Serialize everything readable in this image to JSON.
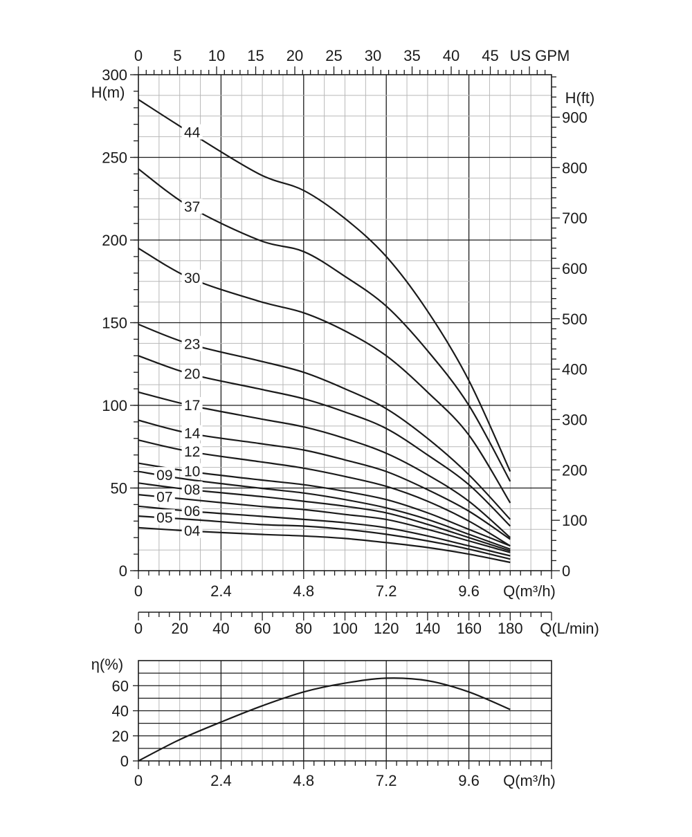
{
  "chart_data": [
    {
      "type": "line",
      "name": "head",
      "axes": {
        "x_bottom": {
          "label": "Q(m³/h)",
          "min": 0,
          "max": 12,
          "ticks": [
            0,
            2.4,
            4.8,
            7.2,
            9.6
          ],
          "tick_labels": [
            "0",
            "2.4",
            "4.8",
            "7.2",
            "9.6"
          ]
        },
        "x_top": {
          "label": "US GPM",
          "min": 0,
          "max": 52.83,
          "ticks": [
            0,
            5,
            10,
            15,
            20,
            25,
            30,
            35,
            40,
            45
          ],
          "tick_labels": [
            "0",
            "5",
            "10",
            "15",
            "20",
            "25",
            "30",
            "35",
            "40",
            "45"
          ]
        },
        "y_left": {
          "label": "H(m)",
          "min": 0,
          "max": 300,
          "ticks": [
            0,
            50,
            100,
            150,
            200,
            250,
            300
          ],
          "tick_labels": [
            "0",
            "50",
            "100",
            "150",
            "200",
            "250",
            "300"
          ]
        },
        "y_right": {
          "label": "H(ft)",
          "min": 0,
          "max": 984.3,
          "ticks": [
            0,
            100,
            200,
            300,
            400,
            500,
            600,
            700,
            800,
            900
          ],
          "tick_labels": [
            "0",
            "100",
            "200",
            "300",
            "400",
            "500",
            "600",
            "700",
            "800",
            "900"
          ]
        }
      },
      "grid": "on",
      "series": [
        {
          "name": "44",
          "x": [
            0,
            1.5,
            3.5,
            4.8,
            6.0,
            7.2,
            8.4,
            9.6,
            10.8
          ],
          "y": [
            285,
            265,
            240,
            230,
            213,
            190,
            157,
            115,
            60
          ]
        },
        {
          "name": "37",
          "x": [
            0,
            1.5,
            3.5,
            4.8,
            6.0,
            7.2,
            8.4,
            9.6,
            10.8
          ],
          "y": [
            243,
            220,
            200,
            193,
            178,
            160,
            133,
            100,
            54
          ]
        },
        {
          "name": "30",
          "x": [
            0,
            1.5,
            3.5,
            4.8,
            6.0,
            7.2,
            8.4,
            9.6,
            10.8
          ],
          "y": [
            195,
            177,
            163,
            156,
            145,
            130,
            108,
            82,
            41
          ]
        },
        {
          "name": "23",
          "x": [
            0,
            1.5,
            3.5,
            4.8,
            6.0,
            7.2,
            8.4,
            9.6,
            10.8
          ],
          "y": [
            149,
            137,
            127,
            120,
            110,
            98,
            80,
            58,
            31
          ]
        },
        {
          "name": "20",
          "x": [
            0,
            1.5,
            3.5,
            4.8,
            6.0,
            7.2,
            8.4,
            9.6,
            10.8
          ],
          "y": [
            130,
            119,
            110,
            104,
            96,
            86,
            70,
            52,
            27
          ]
        },
        {
          "name": "17",
          "x": [
            0,
            1.5,
            3.5,
            4.8,
            6.0,
            7.2,
            8.4,
            9.6,
            10.8
          ],
          "y": [
            108,
            100,
            92,
            87,
            80,
            71,
            58,
            42,
            20
          ]
        },
        {
          "name": "14",
          "x": [
            0,
            1.5,
            3.5,
            4.8,
            6.0,
            7.2,
            8.4,
            9.6,
            10.8
          ],
          "y": [
            91,
            83,
            77,
            73,
            67,
            60,
            49,
            36,
            19
          ]
        },
        {
          "name": "12",
          "x": [
            0,
            1.5,
            3.5,
            4.8,
            6.0,
            7.2,
            8.4,
            9.6,
            10.8
          ],
          "y": [
            79,
            72,
            66,
            62,
            57,
            51,
            42,
            30,
            15
          ]
        },
        {
          "name": "10",
          "x": [
            0,
            1.5,
            3.5,
            4.8,
            6.0,
            7.2,
            8.4,
            9.6,
            10.8
          ],
          "y": [
            65,
            60,
            55,
            52,
            48,
            43,
            35,
            25,
            15
          ]
        },
        {
          "name": "09",
          "x": [
            0,
            1.5,
            3.5,
            4.8,
            6.0,
            7.2,
            8.4,
            9.6,
            10.8
          ],
          "y": [
            60,
            55,
            50,
            47,
            43,
            38,
            31,
            22,
            13
          ]
        },
        {
          "name": "08",
          "x": [
            0,
            1.5,
            3.5,
            4.8,
            6.0,
            7.2,
            8.4,
            9.6,
            10.8
          ],
          "y": [
            53,
            49,
            45,
            42,
            39,
            35,
            28,
            20,
            12
          ]
        },
        {
          "name": "07",
          "x": [
            0,
            1.5,
            3.5,
            4.8,
            6.0,
            7.2,
            8.4,
            9.6,
            10.8
          ],
          "y": [
            46,
            43,
            39,
            37,
            34,
            31,
            25,
            18,
            11
          ]
        },
        {
          "name": "06",
          "x": [
            0,
            1.5,
            3.5,
            4.8,
            6.0,
            7.2,
            8.4,
            9.6,
            10.8
          ],
          "y": [
            39,
            36,
            33,
            31,
            29,
            26,
            21,
            15,
            9
          ]
        },
        {
          "name": "05",
          "x": [
            0,
            1.5,
            3.5,
            4.8,
            6.0,
            7.2,
            8.4,
            9.6,
            10.8
          ],
          "y": [
            33,
            31,
            28,
            27,
            25,
            22,
            18,
            13,
            7
          ]
        },
        {
          "name": "04",
          "x": [
            0,
            1.5,
            3.5,
            4.8,
            6.0,
            7.2,
            8.4,
            9.6,
            10.8
          ],
          "y": [
            26,
            24,
            22,
            21,
            19.5,
            17,
            14,
            10,
            5
          ]
        }
      ]
    },
    {
      "type": "line",
      "name": "flow-scale",
      "axes": {
        "x": {
          "label": "Q(L/min)",
          "min": 0,
          "max": 200,
          "ticks": [
            0,
            20,
            40,
            60,
            80,
            100,
            120,
            140,
            160,
            180
          ],
          "tick_labels": [
            "0",
            "20",
            "40",
            "60",
            "80",
            "100",
            "120",
            "140",
            "160",
            "180"
          ]
        }
      }
    },
    {
      "type": "line",
      "name": "efficiency",
      "axes": {
        "x": {
          "label": "Q(m³/h)",
          "min": 0,
          "max": 12,
          "ticks": [
            0,
            2.4,
            4.8,
            7.2,
            9.6
          ],
          "tick_labels": [
            "0",
            "2.4",
            "4.8",
            "7.2",
            "9.6"
          ]
        },
        "y": {
          "label": "η(%)",
          "min": 0,
          "max": 80,
          "ticks": [
            0,
            20,
            40,
            60
          ],
          "tick_labels": [
            "0",
            "20",
            "40",
            "60"
          ]
        }
      },
      "grid": "on",
      "series": [
        {
          "x": [
            0,
            1.2,
            2.4,
            3.6,
            4.8,
            6.0,
            7.2,
            8.4,
            9.6,
            10.8
          ],
          "y": [
            0,
            17,
            31,
            44,
            55,
            62,
            66,
            64,
            55,
            41
          ]
        }
      ]
    }
  ]
}
